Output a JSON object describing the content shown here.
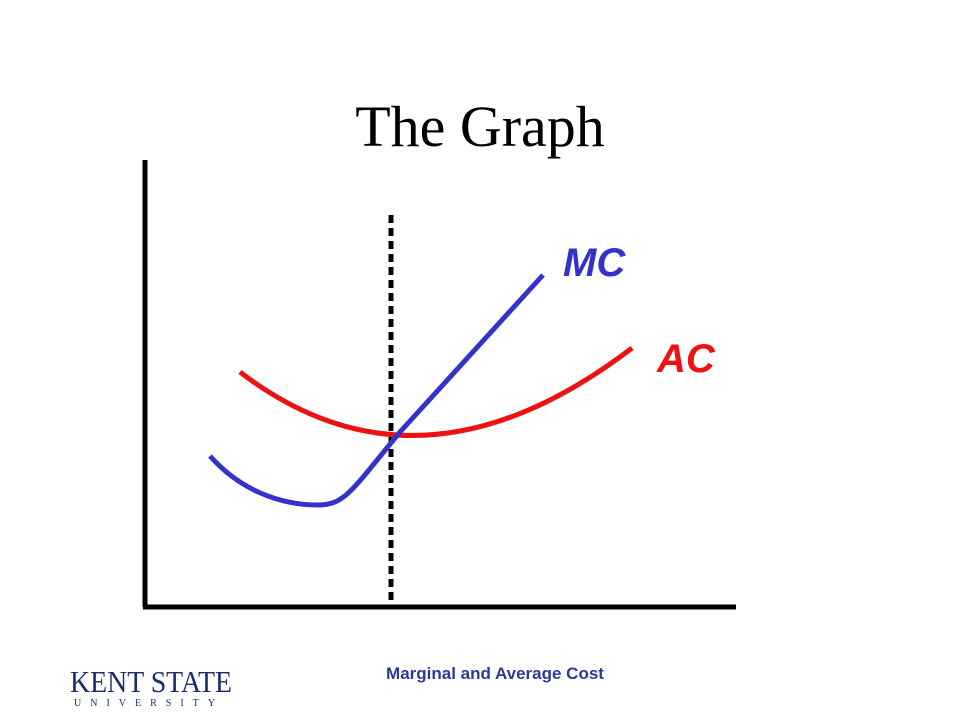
{
  "title": "The Graph",
  "curves": {
    "mc": "MC",
    "ac": "AC"
  },
  "footer": "Marginal and Average Cost",
  "logo": {
    "name": "KENT STATE",
    "sub": "UNIVERSITY"
  }
}
